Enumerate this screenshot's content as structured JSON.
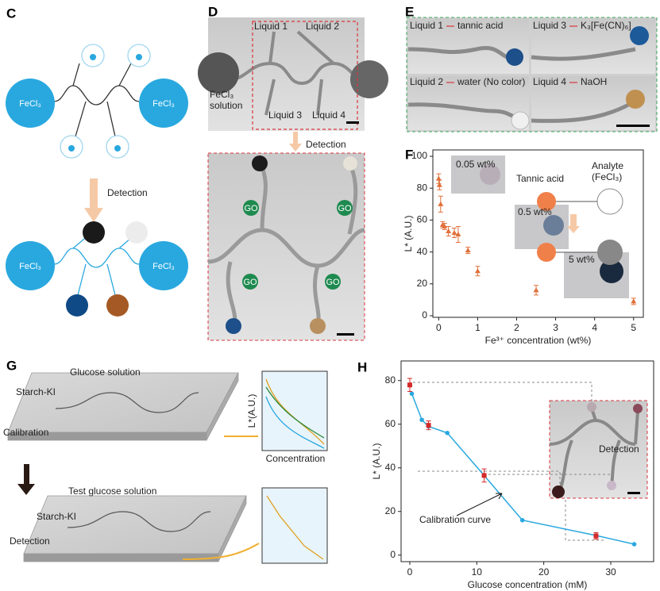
{
  "panels": {
    "labels": [
      "C",
      "D",
      "E",
      "F",
      "G",
      "H"
    ],
    "c": {
      "fecl3": [
        "FeCl₃",
        "FeCl₃",
        "FeCl₃",
        "FeCl₃"
      ],
      "arrow": "Detection"
    },
    "d": {
      "liquids": [
        "Liquid 1",
        "Liquid 2",
        "Liquid 3",
        "Liquid 4"
      ],
      "source": [
        "FeCl₃",
        "solution"
      ],
      "arrow": "Detection",
      "sensor": [
        "GO",
        "GO",
        "GO",
        "GO"
      ]
    },
    "e": {
      "rows": [
        {
          "liquid": "Liquid 1",
          "reagent": "tannic acid"
        },
        {
          "liquid": "Liquid 3",
          "reagent": "K₃[Fe(CN)₆]"
        },
        {
          "liquid": "Liquid 2",
          "reagent": "water (No color)"
        },
        {
          "liquid": "Liquid 4",
          "reagent": "NaOH"
        }
      ]
    },
    "g": {
      "calibration": {
        "stage": "Calibration",
        "solution": "Glucose solution",
        "substrate": "Starch-KI",
        "y_label": "L*(A.U.)",
        "x_label": "Concentration"
      },
      "detection": {
        "stage": "Detection",
        "solution": "Test glucose solution",
        "substrate": "Starch-KI"
      }
    }
  },
  "chart_data": [
    {
      "type": "scatter",
      "x_label": "Fe³⁺ concentration (wt%)",
      "y_label": "L* (A.U.)",
      "xlim": [
        -0.15,
        5.25
      ],
      "ylim": [
        -1,
        104
      ],
      "xticks": [
        0,
        1,
        2,
        3,
        4,
        5
      ],
      "yticks": [
        0,
        20,
        40,
        60,
        80,
        100
      ],
      "annotations": [
        "0.05 wt%",
        "0.5 wt%",
        "5 wt%",
        "Tannic acid",
        "Analyte",
        "(FeCl₃)"
      ],
      "series": [
        {
          "color": "#e0703a",
          "marker": "triangle",
          "mode": "markers",
          "x": [
            0,
            0.02,
            0.05,
            0.1,
            0.15,
            0.25,
            0.4,
            0.5,
            0.75,
            1.0,
            2.5,
            5
          ],
          "values": [
            86,
            82,
            70,
            57,
            56,
            53,
            52,
            51,
            41,
            28,
            16,
            9
          ],
          "errors": [
            3,
            3,
            5,
            2,
            2,
            3,
            3,
            5,
            2,
            3,
            3,
            2
          ]
        }
      ]
    },
    {
      "type": "line",
      "x_label": "Glucose concentration (mM)",
      "y_label": "L* (A.U.)",
      "xlim": [
        -1.3,
        36.4
      ],
      "ylim": [
        -3,
        89
      ],
      "xticks": [
        0,
        10,
        20,
        30
      ],
      "yticks": [
        0,
        20,
        40,
        60,
        80
      ],
      "annotations": [
        "Calibration curve",
        "Detection"
      ],
      "series": [
        {
          "color": "#29a8df",
          "marker": "circle",
          "mode": "line",
          "x": [
            0.3,
            1.8,
            2.8,
            5.6,
            11.1,
            16.8,
            27.8,
            33.5
          ],
          "values": [
            74,
            62,
            59,
            56,
            36.5,
            16,
            9,
            5
          ]
        },
        {
          "color": "#d42a2a",
          "marker": "square",
          "mode": "markers",
          "x": [
            0,
            2.8,
            11.1,
            27.8
          ],
          "values": [
            78,
            59.5,
            36.5,
            8.8
          ],
          "errors": [
            3,
            2,
            3,
            1.5
          ]
        }
      ]
    }
  ]
}
